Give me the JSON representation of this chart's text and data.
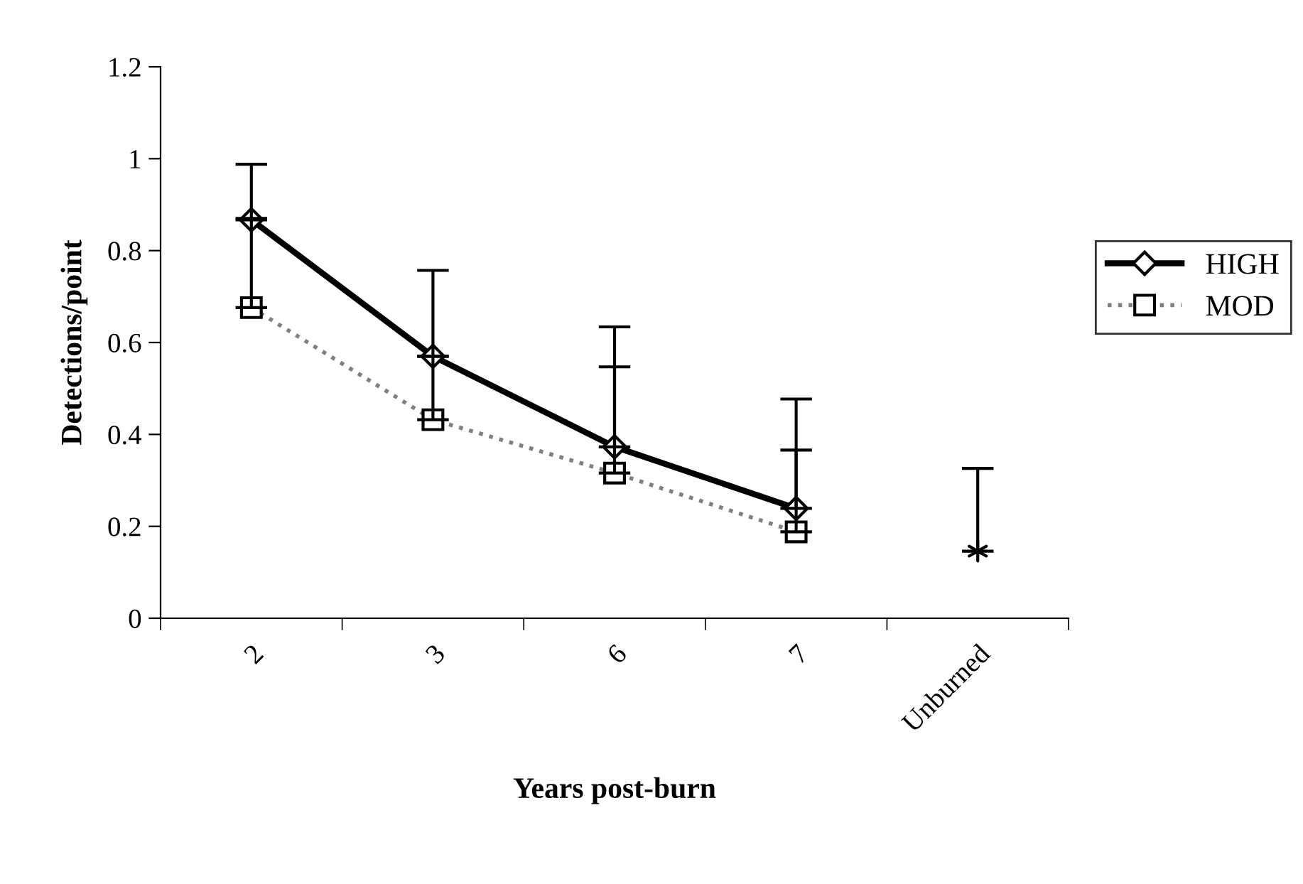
{
  "chart_data": {
    "type": "line",
    "xlabel": "Years post-burn",
    "ylabel": "Detections/point",
    "categories": [
      "2",
      "3",
      "6",
      "7",
      "Unburned"
    ],
    "series": [
      {
        "name": "HIGH",
        "color": "#000000",
        "line_style": "solid",
        "marker": "diamond",
        "values": [
          0.867,
          0.57,
          0.373,
          0.239,
          null
        ],
        "errors": [
          [
            0.867,
            0.988
          ],
          [
            0.57,
            0.757
          ],
          [
            0.373,
            0.634
          ],
          [
            0.239,
            0.477
          ],
          null
        ]
      },
      {
        "name": "MOD",
        "color": "#808080",
        "line_style": "dotted",
        "marker": "square",
        "values": [
          0.676,
          0.432,
          0.316,
          0.188,
          null
        ],
        "errors": [
          [
            0.676,
            0.87
          ],
          [
            0.432,
            0.57
          ],
          [
            0.316,
            0.547
          ],
          [
            0.188,
            0.366
          ],
          null
        ]
      },
      {
        "type": "scatter",
        "color": "#000000",
        "marker": "cross",
        "values": [
          null,
          null,
          null,
          null,
          0.146
        ],
        "errors": [
          null,
          null,
          null,
          null,
          [
            0.146,
            0.326
          ]
        ]
      }
    ],
    "ylim": [
      0,
      1.2
    ],
    "yticks": [
      0,
      0.2,
      0.4,
      0.6,
      0.8,
      1,
      1.2
    ],
    "grid": false,
    "legend": "right"
  }
}
